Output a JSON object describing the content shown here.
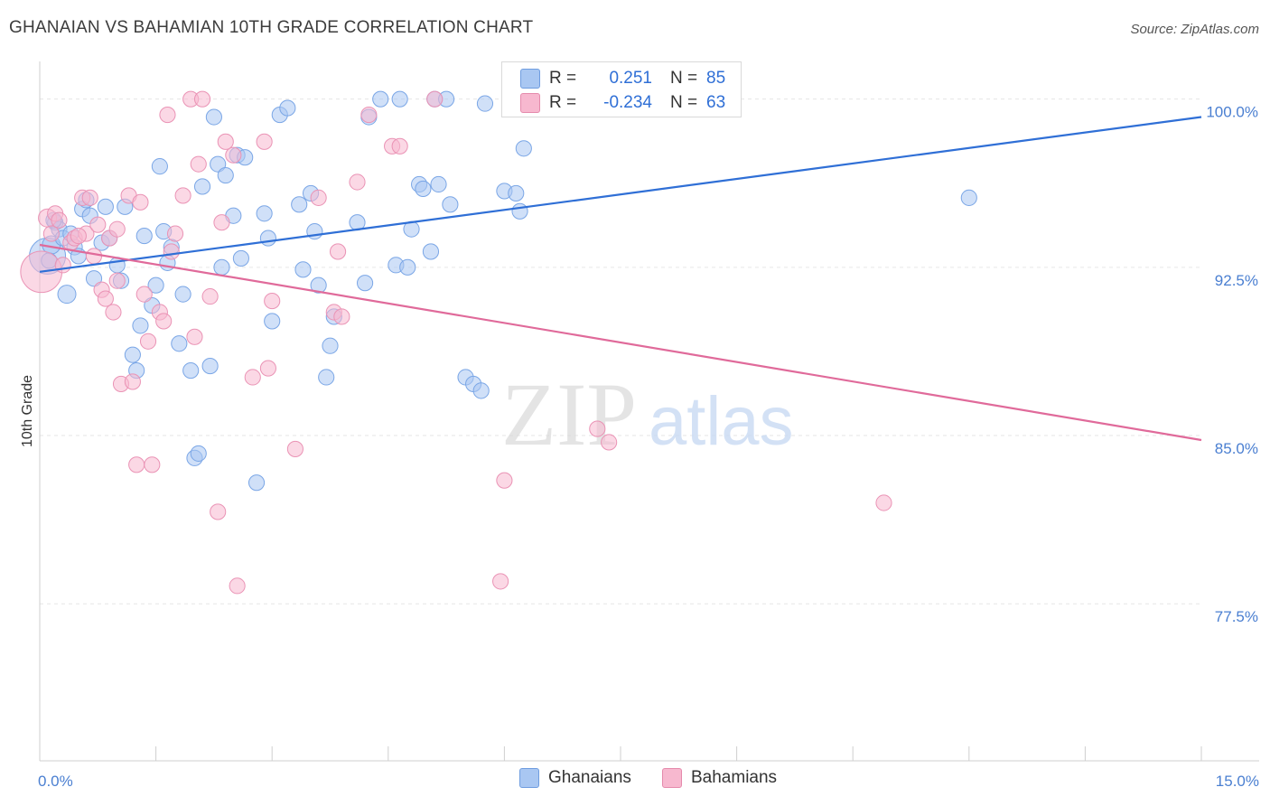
{
  "title": "GHANAIAN VS BAHAMIAN 10TH GRADE CORRELATION CHART",
  "source": "Source: ZipAtlas.com",
  "watermark": {
    "zip": "ZIP",
    "atlas": "atlas"
  },
  "colors": {
    "blue": "#2f6fd6",
    "blue_fill": "#a9c7f2",
    "pink": "#e06a9a",
    "pink_fill": "#f7b8cf",
    "grid": "#e6e6e6",
    "axis_label": "#4a7fd1"
  },
  "stats": [
    {
      "r_label": "R =",
      "r_value": "0.251",
      "n_label": "N =",
      "n_value": "85",
      "color": "#a9c7f2"
    },
    {
      "r_label": "R =",
      "r_value": "-0.234",
      "n_label": "N =",
      "n_value": "63",
      "color": "#f7b8cf"
    }
  ],
  "legend": [
    {
      "label": "Ghanaians",
      "color": "#a9c7f2"
    },
    {
      "label": "Bahamians",
      "color": "#f7b8cf"
    }
  ],
  "chart_data": {
    "type": "scatter",
    "xlabel": "",
    "ylabel": "10th Grade",
    "xlim": [
      0,
      15
    ],
    "ylim": [
      70.5,
      102
    ],
    "x_tick_labels": [
      {
        "value": 0,
        "label": "0.0%"
      },
      {
        "value": 15,
        "label": "15.0%"
      }
    ],
    "y_tick_labels": [
      {
        "value": 100,
        "label": "100.0%"
      },
      {
        "value": 92.5,
        "label": "92.5%"
      },
      {
        "value": 85,
        "label": "85.0%"
      },
      {
        "value": 77.5,
        "label": "77.5%"
      }
    ],
    "x_minor_ticks": [
      1.5,
      3,
      4.5,
      6,
      7.5,
      9,
      10.5,
      12,
      13.5,
      15
    ],
    "series": [
      {
        "name": "Ghanaians",
        "color": "#2f6fd6",
        "trend": [
          [
            0,
            92.3
          ],
          [
            15,
            99.2
          ]
        ],
        "points": [
          [
            0.1,
            93.0
          ],
          [
            0.15,
            93.5
          ],
          [
            0.2,
            94.5
          ],
          [
            0.25,
            94.2
          ],
          [
            0.3,
            93.8
          ],
          [
            0.35,
            91.3
          ],
          [
            0.4,
            94.0
          ],
          [
            0.45,
            93.4
          ],
          [
            0.5,
            93.0
          ],
          [
            0.55,
            95.1
          ],
          [
            0.6,
            95.5
          ],
          [
            0.65,
            94.8
          ],
          [
            0.7,
            92.0
          ],
          [
            0.8,
            93.6
          ],
          [
            0.85,
            95.2
          ],
          [
            0.9,
            93.8
          ],
          [
            1.0,
            92.6
          ],
          [
            1.1,
            95.2
          ],
          [
            1.2,
            88.6
          ],
          [
            1.25,
            87.9
          ],
          [
            1.3,
            89.9
          ],
          [
            1.35,
            93.9
          ],
          [
            1.45,
            90.8
          ],
          [
            1.5,
            91.7
          ],
          [
            1.55,
            97.0
          ],
          [
            1.6,
            94.1
          ],
          [
            1.65,
            92.7
          ],
          [
            1.7,
            93.4
          ],
          [
            1.8,
            89.1
          ],
          [
            1.85,
            91.3
          ],
          [
            1.95,
            87.9
          ],
          [
            2.0,
            84.0
          ],
          [
            2.05,
            84.2
          ],
          [
            2.1,
            96.1
          ],
          [
            2.2,
            88.1
          ],
          [
            2.25,
            99.2
          ],
          [
            2.3,
            97.1
          ],
          [
            2.35,
            92.5
          ],
          [
            2.4,
            96.6
          ],
          [
            2.5,
            94.8
          ],
          [
            2.55,
            97.5
          ],
          [
            2.6,
            92.9
          ],
          [
            2.65,
            97.4
          ],
          [
            2.8,
            82.9
          ],
          [
            2.9,
            94.9
          ],
          [
            2.95,
            93.8
          ],
          [
            3.0,
            90.1
          ],
          [
            3.1,
            99.3
          ],
          [
            3.2,
            99.6
          ],
          [
            3.35,
            95.3
          ],
          [
            3.4,
            92.4
          ],
          [
            3.5,
            95.8
          ],
          [
            3.55,
            94.1
          ],
          [
            3.6,
            91.7
          ],
          [
            3.7,
            87.6
          ],
          [
            3.75,
            89.0
          ],
          [
            3.8,
            90.3
          ],
          [
            4.1,
            94.5
          ],
          [
            4.2,
            91.8
          ],
          [
            4.25,
            99.2
          ],
          [
            4.4,
            100.0
          ],
          [
            4.6,
            92.6
          ],
          [
            4.65,
            100.0
          ],
          [
            4.75,
            92.5
          ],
          [
            4.8,
            94.2
          ],
          [
            4.9,
            96.2
          ],
          [
            4.95,
            96.0
          ],
          [
            5.05,
            93.2
          ],
          [
            5.1,
            100.0
          ],
          [
            5.15,
            96.2
          ],
          [
            5.25,
            100.0
          ],
          [
            5.3,
            95.3
          ],
          [
            5.5,
            87.6
          ],
          [
            5.6,
            87.3
          ],
          [
            5.7,
            87.0
          ],
          [
            5.75,
            99.8
          ],
          [
            6.0,
            95.9
          ],
          [
            6.15,
            95.8
          ],
          [
            6.2,
            95.0
          ],
          [
            6.25,
            97.8
          ],
          [
            7.5,
            100.0
          ],
          [
            12.0,
            95.6
          ],
          [
            0.12,
            92.8
          ],
          [
            0.18,
            94.6
          ],
          [
            1.05,
            91.9
          ]
        ],
        "sizes": [
          28,
          14,
          12,
          12,
          12,
          14,
          12,
          12,
          12,
          12,
          12,
          12,
          12,
          12,
          12,
          12,
          12,
          12,
          12,
          12,
          12,
          12,
          12,
          12,
          12,
          12,
          12,
          12,
          12,
          12,
          12,
          12,
          12,
          12,
          12,
          12,
          12,
          12,
          12,
          12,
          12,
          12,
          12,
          12,
          12,
          12,
          12,
          12,
          12,
          12,
          12,
          12,
          12,
          12,
          12,
          12,
          12,
          12,
          12,
          12,
          12,
          12,
          12,
          12,
          12,
          12,
          12,
          12,
          12,
          12,
          12,
          12,
          12,
          12,
          12,
          12,
          12,
          12,
          12,
          12,
          12,
          12,
          12,
          12,
          12
        ]
      },
      {
        "name": "Bahamians",
        "color": "#e06a9a",
        "trend": [
          [
            0,
            93.5
          ],
          [
            15,
            84.8
          ]
        ],
        "points": [
          [
            0.02,
            92.3
          ],
          [
            0.1,
            94.7
          ],
          [
            0.15,
            94.0
          ],
          [
            0.2,
            94.9
          ],
          [
            0.25,
            94.6
          ],
          [
            0.3,
            92.6
          ],
          [
            0.4,
            93.6
          ],
          [
            0.45,
            93.8
          ],
          [
            0.55,
            95.6
          ],
          [
            0.6,
            94.0
          ],
          [
            0.65,
            95.6
          ],
          [
            0.7,
            93.0
          ],
          [
            0.75,
            94.4
          ],
          [
            0.8,
            91.5
          ],
          [
            0.85,
            91.1
          ],
          [
            0.9,
            93.8
          ],
          [
            0.95,
            90.5
          ],
          [
            1.0,
            91.9
          ],
          [
            1.05,
            87.3
          ],
          [
            1.15,
            95.7
          ],
          [
            1.2,
            87.4
          ],
          [
            1.25,
            83.7
          ],
          [
            1.3,
            95.4
          ],
          [
            1.35,
            91.3
          ],
          [
            1.4,
            89.2
          ],
          [
            1.45,
            83.7
          ],
          [
            1.55,
            90.5
          ],
          [
            1.6,
            90.1
          ],
          [
            1.65,
            99.3
          ],
          [
            1.7,
            93.2
          ],
          [
            1.75,
            94.0
          ],
          [
            1.85,
            95.7
          ],
          [
            1.95,
            100.0
          ],
          [
            2.0,
            89.4
          ],
          [
            2.05,
            97.1
          ],
          [
            2.1,
            100.0
          ],
          [
            2.2,
            91.2
          ],
          [
            2.3,
            81.6
          ],
          [
            2.35,
            94.5
          ],
          [
            2.4,
            98.1
          ],
          [
            2.5,
            97.5
          ],
          [
            2.55,
            78.3
          ],
          [
            2.75,
            87.6
          ],
          [
            2.9,
            98.1
          ],
          [
            2.95,
            88.0
          ],
          [
            3.0,
            91.0
          ],
          [
            3.3,
            84.4
          ],
          [
            3.6,
            95.6
          ],
          [
            3.8,
            90.5
          ],
          [
            3.85,
            93.2
          ],
          [
            3.9,
            90.3
          ],
          [
            4.1,
            96.3
          ],
          [
            4.25,
            99.3
          ],
          [
            4.55,
            97.9
          ],
          [
            4.65,
            97.9
          ],
          [
            5.1,
            100.0
          ],
          [
            6.0,
            83.0
          ],
          [
            5.95,
            78.5
          ],
          [
            7.2,
            85.3
          ],
          [
            7.35,
            84.7
          ],
          [
            10.9,
            82.0
          ],
          [
            1.0,
            94.2
          ],
          [
            0.5,
            93.9
          ]
        ],
        "sizes": [
          32,
          14,
          12,
          12,
          12,
          12,
          12,
          12,
          12,
          12,
          12,
          12,
          12,
          12,
          12,
          12,
          12,
          12,
          12,
          12,
          12,
          12,
          12,
          12,
          12,
          12,
          12,
          12,
          12,
          12,
          12,
          12,
          12,
          12,
          12,
          12,
          12,
          12,
          12,
          12,
          12,
          12,
          12,
          12,
          12,
          12,
          12,
          12,
          12,
          12,
          12,
          12,
          12,
          12,
          12,
          12,
          12,
          12,
          12,
          12,
          12,
          12,
          12
        ]
      }
    ]
  }
}
